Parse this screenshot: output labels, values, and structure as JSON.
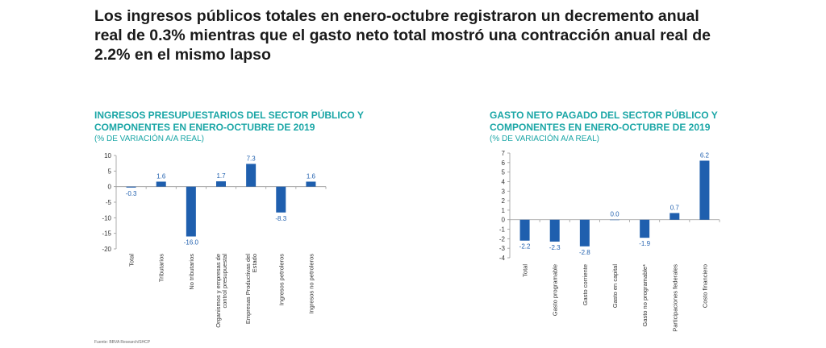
{
  "headline": "Los ingresos públicos totales en enero-octubre registraron un decremento anual real de 0.3% mientras que el gasto neto total mostró una contracción anual real de 2.2% en el mismo lapso",
  "source": "Fuente: BBVA Research/SHCP",
  "colors": {
    "bar": "#1f5fae",
    "title": "#1aa6a6",
    "axis": "#999999",
    "label": "#1f5fae"
  },
  "chart_data": [
    {
      "type": "bar",
      "title": "INGRESOS PRESUPUESTARIOS DEL SECTOR PÚBLICO Y COMPONENTES EN ENERO-OCTUBRE DE 2019",
      "subtitle": "(% DE VARIACIÓN A/A REAL)",
      "categories": [
        "Total",
        "Tributarios",
        "No tributarios",
        "Organismos y empresas de control presupuestal",
        "Empresas Productivas del Estado",
        "Ingresos petroleros",
        "Ingresos no petroleros"
      ],
      "values": [
        -0.3,
        1.6,
        -16.0,
        1.7,
        7.3,
        -8.3,
        1.6
      ],
      "data_labels": [
        "-0.3",
        "1.6",
        "-16.0",
        "1.7",
        "7.3",
        "-8.3",
        "1.6"
      ],
      "yticks": [
        "10",
        "5",
        "0",
        "-5",
        "-10",
        "-15",
        "-20"
      ],
      "ylim": [
        -20,
        10
      ],
      "grid": false,
      "xlabel": "",
      "ylabel": ""
    },
    {
      "type": "bar",
      "title": "GASTO NETO PAGADO DEL SECTOR PÚBLICO Y COMPONENTES EN ENERO-OCTUBRE DE 2019",
      "subtitle": "(% DE VARIACIÓN A/A REAL)",
      "categories": [
        "Total",
        "Gasto programable",
        "Gasto corriente",
        "Gasto en capital",
        "Gasto no programable*",
        "Participaciones federales",
        "Costo financiero"
      ],
      "values": [
        -2.2,
        -2.3,
        -2.8,
        0.0,
        -1.9,
        0.7,
        6.2
      ],
      "data_labels": [
        "-2.2",
        "-2.3",
        "-2.8",
        "0.0",
        "-1.9",
        "0.7",
        "6.2"
      ],
      "yticks": [
        "7",
        "6",
        "5",
        "4",
        "3",
        "2",
        "1",
        "0",
        "-1",
        "-2",
        "-3",
        "-4"
      ],
      "ylim": [
        -4,
        7
      ],
      "grid": false,
      "xlabel": "",
      "ylabel": ""
    }
  ]
}
